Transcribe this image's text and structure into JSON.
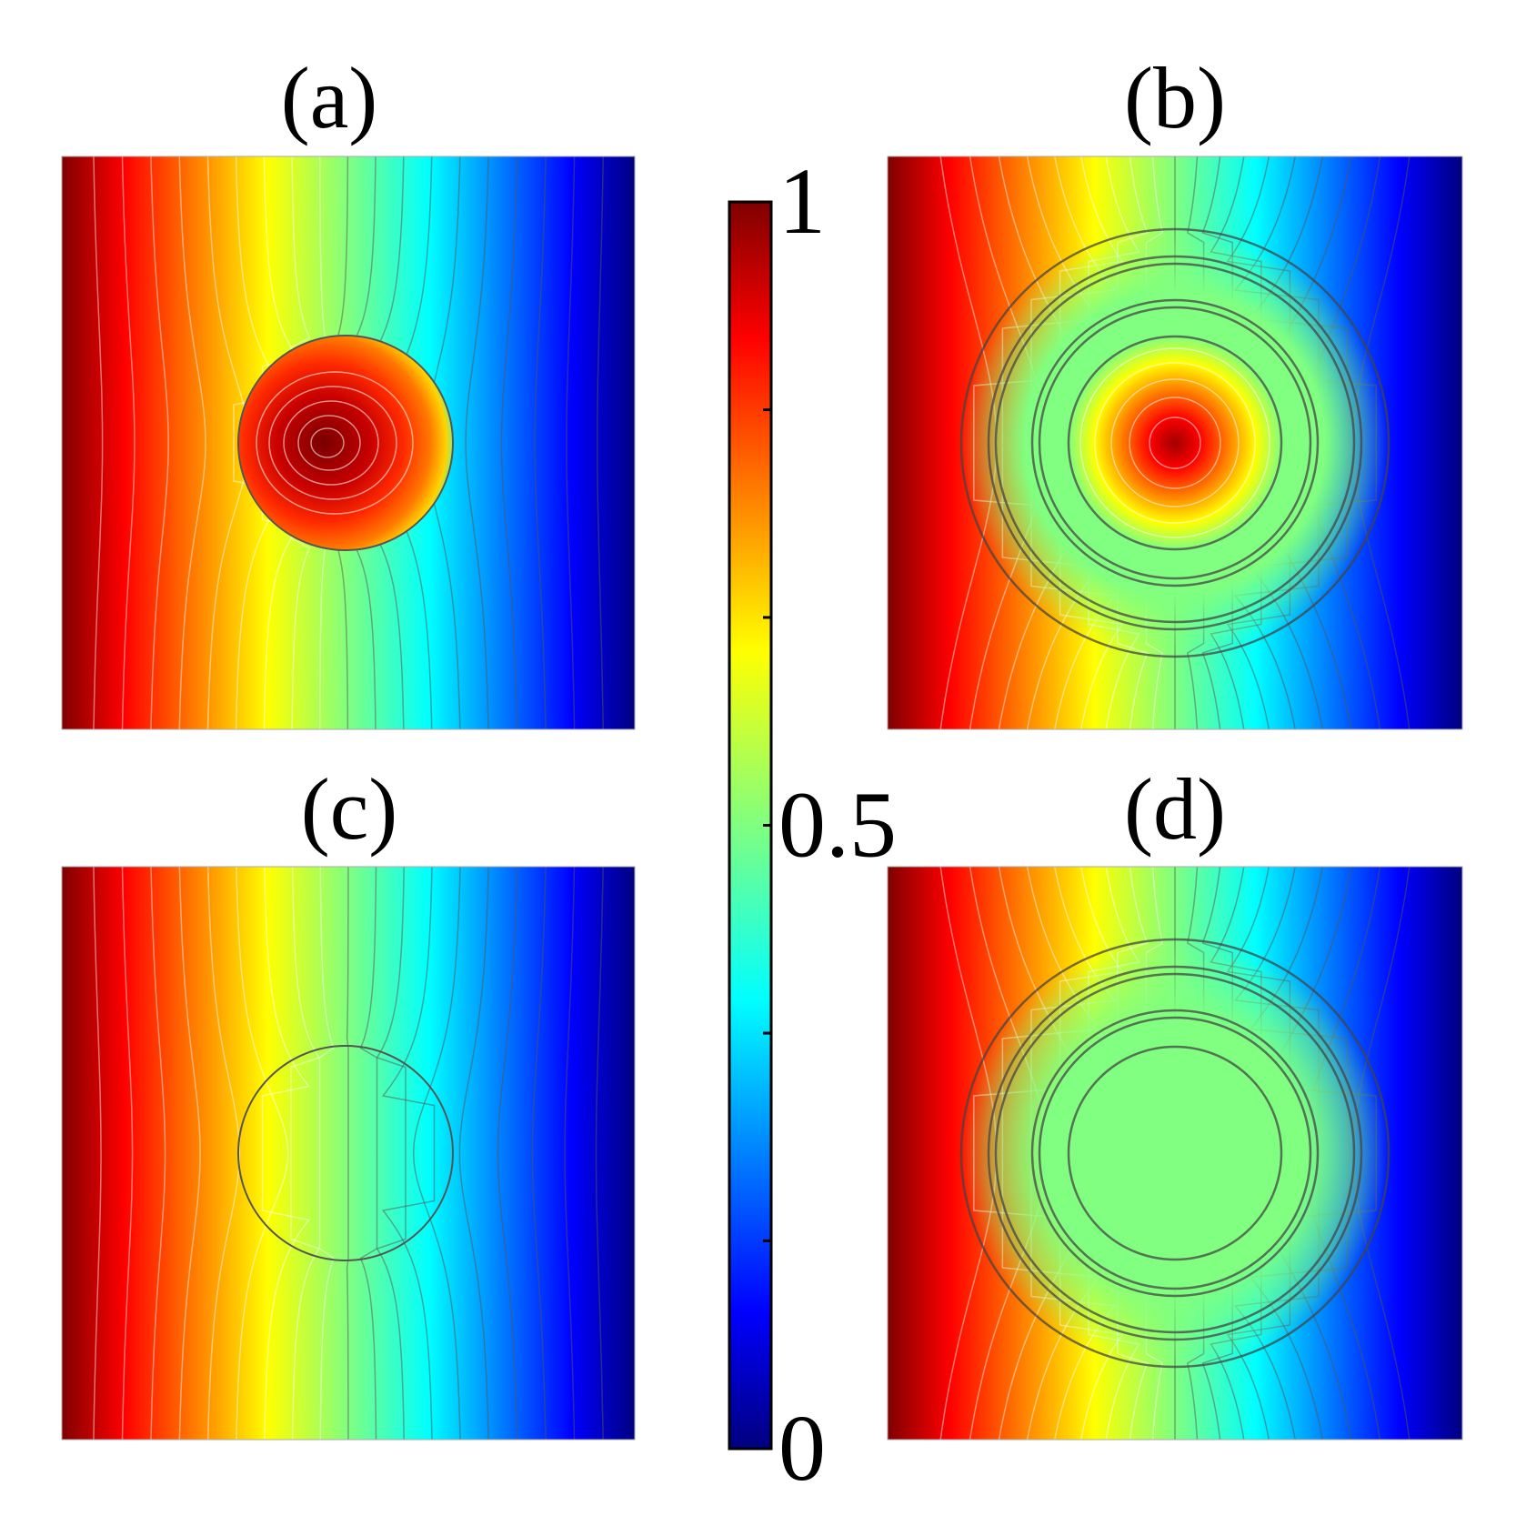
{
  "chart_data": {
    "type": "heatmap",
    "colormap": "jet",
    "panels": [
      {
        "label": "(a)",
        "field": "concentrated-core"
      },
      {
        "label": "(b)",
        "field": "concentric-shell-with-core"
      },
      {
        "label": "(c)",
        "field": "transparent-inclusion"
      },
      {
        "label": "(d)",
        "field": "concentric-shell-uniform-core"
      }
    ],
    "colorbar": {
      "range": [
        0,
        1
      ],
      "tick_values": [
        0,
        0.1667,
        0.3333,
        0.5,
        0.6667,
        0.8333,
        1
      ],
      "tick_labels": [
        {
          "value": 0,
          "text": "0"
        },
        {
          "value": 0.5,
          "text": "0.5"
        },
        {
          "value": 1,
          "text": "1"
        }
      ]
    },
    "background_field": "linear gradient from 1 (left edge) to 0 (right edge)",
    "contour_levels": 20
  }
}
